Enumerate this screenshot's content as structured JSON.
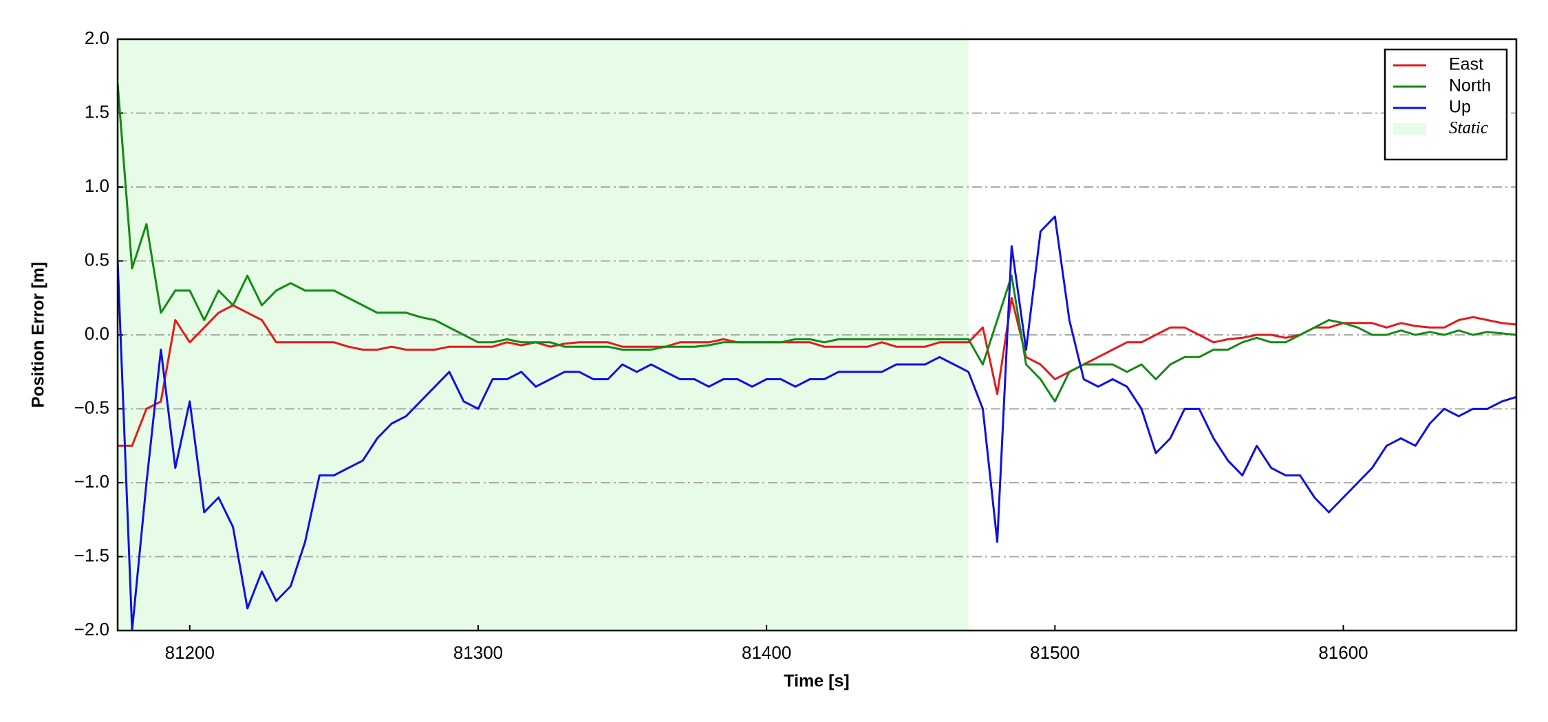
{
  "chart_data": {
    "type": "line",
    "xlabel": "Time [s]",
    "ylabel": "Position Error [m]",
    "x": [
      81175,
      81180,
      81185,
      81190,
      81195,
      81200,
      81205,
      81210,
      81215,
      81220,
      81225,
      81230,
      81235,
      81240,
      81245,
      81250,
      81255,
      81260,
      81265,
      81270,
      81275,
      81280,
      81285,
      81290,
      81295,
      81300,
      81305,
      81310,
      81315,
      81320,
      81325,
      81330,
      81335,
      81340,
      81345,
      81350,
      81355,
      81360,
      81365,
      81370,
      81375,
      81380,
      81385,
      81390,
      81395,
      81400,
      81405,
      81410,
      81415,
      81420,
      81425,
      81430,
      81435,
      81440,
      81445,
      81450,
      81455,
      81460,
      81465,
      81470,
      81475,
      81480,
      81485,
      81490,
      81495,
      81500,
      81505,
      81510,
      81515,
      81520,
      81525,
      81530,
      81535,
      81540,
      81545,
      81550,
      81555,
      81560,
      81565,
      81570,
      81575,
      81580,
      81585,
      81590,
      81595,
      81600,
      81605,
      81610,
      81615,
      81620,
      81625,
      81630,
      81635,
      81640,
      81645,
      81650,
      81655,
      81660
    ],
    "series": [
      {
        "name": "East",
        "color": "#e31a1c",
        "values": [
          -0.75,
          -0.75,
          -0.5,
          -0.45,
          0.1,
          -0.05,
          0.05,
          0.15,
          0.2,
          0.15,
          0.1,
          -0.05,
          -0.05,
          -0.05,
          -0.05,
          -0.05,
          -0.08,
          -0.1,
          -0.1,
          -0.08,
          -0.1,
          -0.1,
          -0.1,
          -0.08,
          -0.08,
          -0.08,
          -0.08,
          -0.05,
          -0.07,
          -0.05,
          -0.08,
          -0.06,
          -0.05,
          -0.05,
          -0.05,
          -0.08,
          -0.08,
          -0.08,
          -0.08,
          -0.05,
          -0.05,
          -0.05,
          -0.03,
          -0.05,
          -0.05,
          -0.05,
          -0.05,
          -0.05,
          -0.05,
          -0.08,
          -0.08,
          -0.08,
          -0.08,
          -0.05,
          -0.08,
          -0.08,
          -0.08,
          -0.05,
          -0.05,
          -0.05,
          0.05,
          -0.4,
          0.25,
          -0.15,
          -0.2,
          -0.3,
          -0.25,
          -0.2,
          -0.15,
          -0.1,
          -0.05,
          -0.05,
          0.0,
          0.05,
          0.05,
          0.0,
          -0.05,
          -0.03,
          -0.02,
          0.0,
          0.0,
          -0.02,
          0.0,
          0.05,
          0.05,
          0.08,
          0.08,
          0.08,
          0.05,
          0.08,
          0.06,
          0.05,
          0.05,
          0.1,
          0.12,
          0.1,
          0.08,
          0.07
        ]
      },
      {
        "name": "North",
        "color": "#138a13",
        "values": [
          1.7,
          0.45,
          0.75,
          0.15,
          0.3,
          0.3,
          0.1,
          0.3,
          0.2,
          0.4,
          0.2,
          0.3,
          0.35,
          0.3,
          0.3,
          0.3,
          0.25,
          0.2,
          0.15,
          0.15,
          0.15,
          0.12,
          0.1,
          0.05,
          0.0,
          -0.05,
          -0.05,
          -0.03,
          -0.05,
          -0.05,
          -0.05,
          -0.08,
          -0.08,
          -0.08,
          -0.08,
          -0.1,
          -0.1,
          -0.1,
          -0.08,
          -0.08,
          -0.08,
          -0.07,
          -0.05,
          -0.05,
          -0.05,
          -0.05,
          -0.05,
          -0.03,
          -0.03,
          -0.05,
          -0.03,
          -0.03,
          -0.03,
          -0.03,
          -0.03,
          -0.03,
          -0.03,
          -0.03,
          -0.03,
          -0.03,
          -0.2,
          0.1,
          0.4,
          -0.2,
          -0.3,
          -0.45,
          -0.25,
          -0.2,
          -0.2,
          -0.2,
          -0.25,
          -0.2,
          -0.3,
          -0.2,
          -0.15,
          -0.15,
          -0.1,
          -0.1,
          -0.05,
          -0.02,
          -0.05,
          -0.05,
          0.0,
          0.05,
          0.1,
          0.08,
          0.05,
          0.0,
          0.0,
          0.03,
          0.0,
          0.02,
          0.0,
          0.03,
          0.0,
          0.02,
          0.01,
          0.0
        ]
      },
      {
        "name": "Up",
        "color": "#1010e0",
        "values": [
          0.5,
          -2.0,
          -1.0,
          -0.1,
          -0.9,
          -0.45,
          -1.2,
          -1.1,
          -1.3,
          -1.85,
          -1.6,
          -1.8,
          -1.7,
          -1.4,
          -0.95,
          -0.95,
          -0.9,
          -0.85,
          -0.7,
          -0.6,
          -0.55,
          -0.45,
          -0.35,
          -0.25,
          -0.45,
          -0.5,
          -0.3,
          -0.3,
          -0.25,
          -0.35,
          -0.3,
          -0.25,
          -0.25,
          -0.3,
          -0.3,
          -0.2,
          -0.25,
          -0.2,
          -0.25,
          -0.3,
          -0.3,
          -0.35,
          -0.3,
          -0.3,
          -0.35,
          -0.3,
          -0.3,
          -0.35,
          -0.3,
          -0.3,
          -0.25,
          -0.25,
          -0.25,
          -0.25,
          -0.2,
          -0.2,
          -0.2,
          -0.15,
          -0.2,
          -0.25,
          -0.5,
          -1.4,
          0.6,
          -0.1,
          0.7,
          0.8,
          0.1,
          -0.3,
          -0.35,
          -0.3,
          -0.35,
          -0.5,
          -0.8,
          -0.7,
          -0.5,
          -0.5,
          -0.7,
          -0.85,
          -0.95,
          -0.75,
          -0.9,
          -0.95,
          -0.95,
          -1.1,
          -1.2,
          -1.1,
          -1.0,
          -0.9,
          -0.75,
          -0.7,
          -0.75,
          -0.6,
          -0.5,
          -0.55,
          -0.5,
          -0.5,
          -0.45,
          -0.42
        ]
      }
    ],
    "shaded_regions": [
      {
        "name": "Static",
        "xmin": 81175,
        "xmax": 81470,
        "color": "#e6fce6"
      }
    ],
    "xlim": [
      81175,
      81660
    ],
    "ylim": [
      -2.0,
      2.0
    ],
    "xticks": [
      81200,
      81300,
      81400,
      81500,
      81600
    ],
    "yticks": [
      {
        "value": -2,
        "label": "−2.0"
      },
      {
        "value": -1.5,
        "label": "−1.5"
      },
      {
        "value": -1,
        "label": "−1.0"
      },
      {
        "value": -0.5,
        "label": "−0.5"
      },
      {
        "value": 0,
        "label": "0.0"
      },
      {
        "value": 0.5,
        "label": "0.5"
      },
      {
        "value": 1,
        "label": "1.0"
      },
      {
        "value": 1.5,
        "label": "1.5"
      },
      {
        "value": 2,
        "label": "2.0"
      }
    ],
    "grid": true,
    "legend": "upper right"
  }
}
